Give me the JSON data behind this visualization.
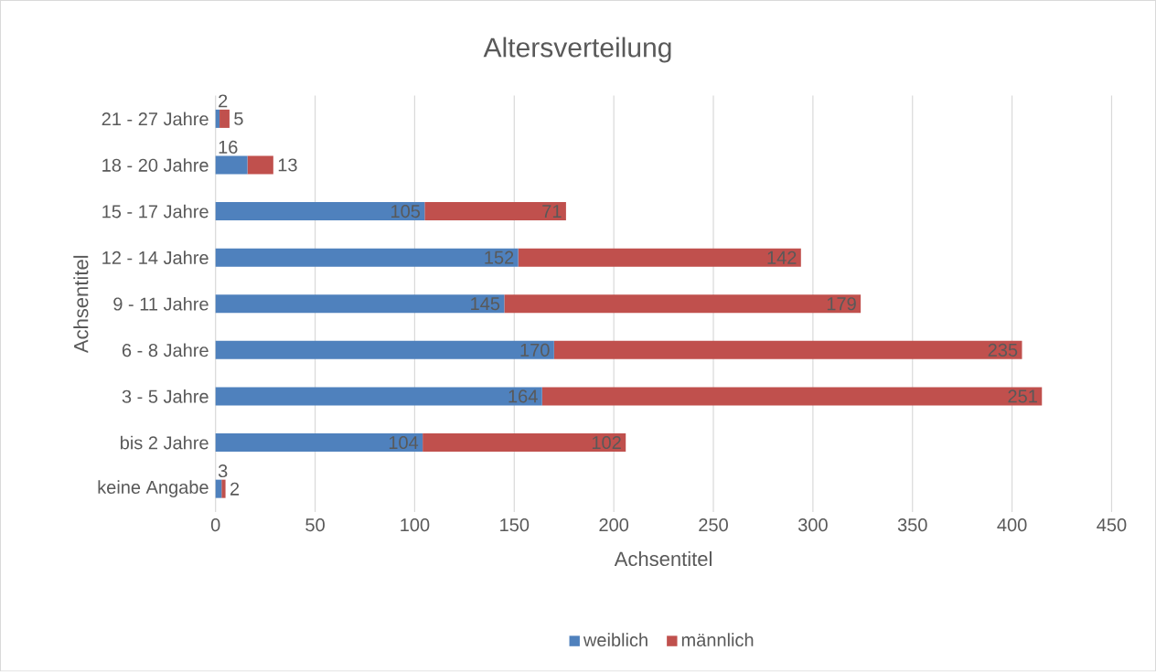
{
  "chart_data": {
    "type": "bar",
    "orientation": "horizontal",
    "stacked": true,
    "title": "Altersverteilung",
    "xlabel": "Achsentitel",
    "ylabel": "Achsentitel",
    "categories": [
      "21 - 27 Jahre",
      "18 - 20 Jahre",
      "15 - 17 Jahre",
      "12 - 14 Jahre",
      "9 - 11 Jahre",
      "6 -  8 Jahre",
      "3 -  5 Jahre",
      "bis 2 Jahre",
      "keine Angabe"
    ],
    "series": [
      {
        "name": "weiblich",
        "color": "#4f81bd",
        "values": [
          2,
          16,
          105,
          152,
          145,
          170,
          164,
          104,
          3
        ]
      },
      {
        "name": "männlich",
        "color": "#c0504d",
        "values": [
          5,
          13,
          71,
          142,
          179,
          235,
          251,
          102,
          2
        ]
      }
    ],
    "xlim": [
      0,
      450
    ],
    "xticks": [
      0,
      50,
      100,
      150,
      200,
      250,
      300,
      350,
      400,
      450
    ],
    "grid": "x",
    "legend": "bottom",
    "data_labels": true
  }
}
